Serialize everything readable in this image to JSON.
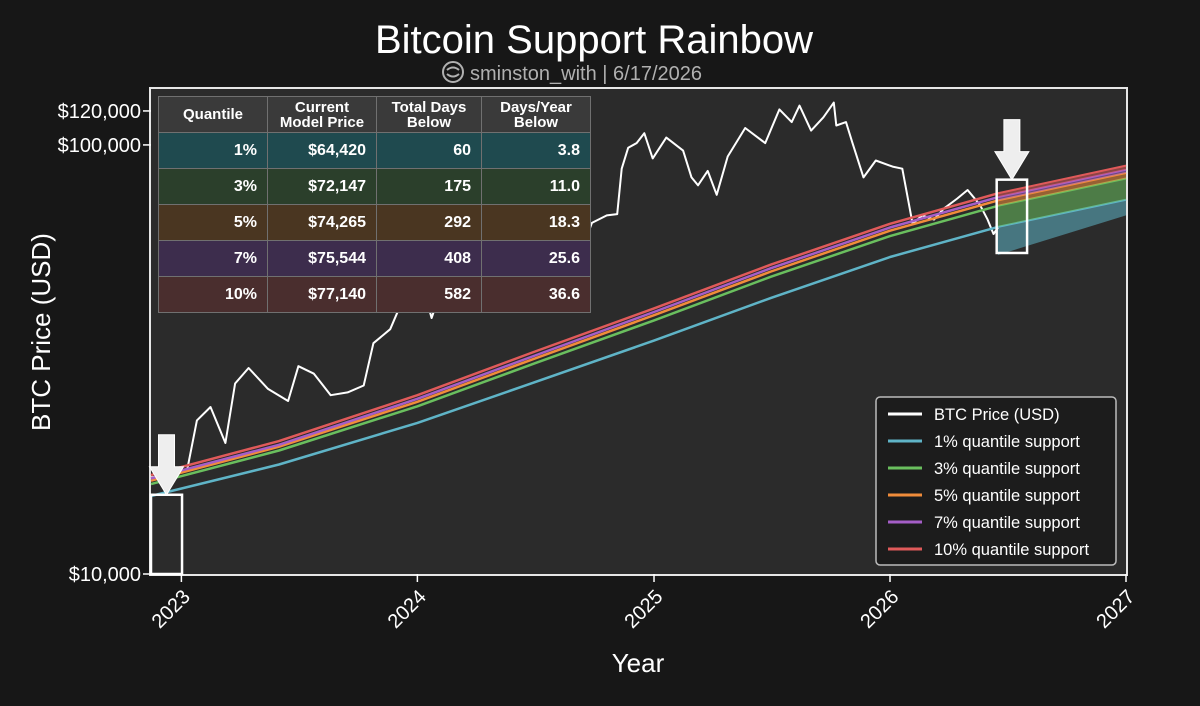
{
  "header": {
    "title": "Bitcoin Support Rainbow",
    "subtitle": "sminston_with | 6/17/2026",
    "subtitle_icon": "social-handle-icon"
  },
  "table": {
    "headers": [
      "Quantile",
      "Current\nModel Price",
      "Total Days\nBelow",
      "Days/Year\nBelow"
    ],
    "rows": [
      {
        "quantile": "1%",
        "price": "$64,420",
        "days": "60",
        "per_year": "3.8",
        "color": "#1f4a4f"
      },
      {
        "quantile": "3%",
        "price": "$72,147",
        "days": "175",
        "per_year": "11.0",
        "color": "#2b3f2b"
      },
      {
        "quantile": "5%",
        "price": "$74,265",
        "days": "292",
        "per_year": "18.3",
        "color": "#4a3621"
      },
      {
        "quantile": "7%",
        "price": "$75,544",
        "days": "408",
        "per_year": "25.6",
        "color": "#3d2d4d"
      },
      {
        "quantile": "10%",
        "price": "$77,140",
        "days": "582",
        "per_year": "36.6",
        "color": "#4a2e2e"
      }
    ]
  },
  "chart_data": {
    "type": "line",
    "title": "Bitcoin Support Rainbow",
    "xlabel": "Year",
    "ylabel": "BTC Price (USD)",
    "y_scale": "log",
    "x_ticks": [
      "2023",
      "2024",
      "2025",
      "2026",
      "2027"
    ],
    "y_ticks": [
      {
        "value": 10000,
        "label": "$10,000"
      },
      {
        "value": 100000,
        "label": "$100,000"
      },
      {
        "value": 120000,
        "label": "$120,000"
      }
    ],
    "xlim": [
      "2022-11-15",
      "2027-01-01"
    ],
    "ylim": [
      10000,
      135000
    ],
    "grid": false,
    "legend_position": "lower-right",
    "series": [
      {
        "name": "BTC Price (USD)",
        "color": "#ffffff",
        "points": [
          [
            "2022-11-15",
            16800
          ],
          [
            "2022-12-15",
            16900
          ],
          [
            "2023-01-10",
            17500
          ],
          [
            "2023-01-25",
            22800
          ],
          [
            "2023-02-15",
            24500
          ],
          [
            "2023-03-10",
            20200
          ],
          [
            "2023-03-25",
            27800
          ],
          [
            "2023-04-15",
            30200
          ],
          [
            "2023-05-15",
            27000
          ],
          [
            "2023-06-15",
            25300
          ],
          [
            "2023-07-01",
            30500
          ],
          [
            "2023-07-25",
            29300
          ],
          [
            "2023-08-20",
            26100
          ],
          [
            "2023-09-15",
            26500
          ],
          [
            "2023-10-10",
            27500
          ],
          [
            "2023-10-25",
            34500
          ],
          [
            "2023-11-20",
            37200
          ],
          [
            "2023-12-10",
            43800
          ],
          [
            "2024-01-10",
            46500
          ],
          [
            "2024-01-23",
            39500
          ],
          [
            "2024-02-10",
            47500
          ],
          [
            "2024-02-28",
            61500
          ],
          [
            "2024-03-14",
            72000
          ],
          [
            "2024-04-01",
            69500
          ],
          [
            "2024-04-20",
            64500
          ],
          [
            "2024-05-01",
            58000
          ],
          [
            "2024-05-20",
            70500
          ],
          [
            "2024-06-07",
            71000
          ],
          [
            "2024-07-05",
            55000
          ],
          [
            "2024-07-28",
            68500
          ],
          [
            "2024-08-05",
            53500
          ],
          [
            "2024-08-25",
            64000
          ],
          [
            "2024-09-06",
            54000
          ],
          [
            "2024-09-27",
            65800
          ],
          [
            "2024-10-20",
            68500
          ],
          [
            "2024-11-05",
            69000
          ],
          [
            "2024-11-12",
            88000
          ],
          [
            "2024-11-22",
            98500
          ],
          [
            "2024-12-05",
            101000
          ],
          [
            "2024-12-17",
            106500
          ],
          [
            "2024-12-30",
            93000
          ],
          [
            "2025-01-20",
            104000
          ],
          [
            "2025-02-15",
            97000
          ],
          [
            "2025-02-28",
            84000
          ],
          [
            "2025-03-10",
            80500
          ],
          [
            "2025-03-25",
            87000
          ],
          [
            "2025-04-08",
            76500
          ],
          [
            "2025-04-25",
            94000
          ],
          [
            "2025-05-22",
            109500
          ],
          [
            "2025-06-22",
            101000
          ],
          [
            "2025-07-14",
            121000
          ],
          [
            "2025-08-02",
            113000
          ],
          [
            "2025-08-14",
            123500
          ],
          [
            "2025-09-01",
            108000
          ],
          [
            "2025-09-20",
            116000
          ],
          [
            "2025-10-06",
            125500
          ],
          [
            "2025-10-10",
            111000
          ],
          [
            "2025-10-25",
            113000
          ],
          [
            "2025-11-04",
            101000
          ],
          [
            "2025-11-21",
            84000
          ],
          [
            "2025-12-10",
            92000
          ],
          [
            "2026-01-05",
            89000
          ],
          [
            "2026-01-20",
            88000
          ],
          [
            "2026-02-05",
            65500
          ],
          [
            "2026-02-20",
            68500
          ],
          [
            "2026-03-10",
            67000
          ],
          [
            "2026-03-25",
            71000
          ],
          [
            "2026-04-15",
            75000
          ],
          [
            "2026-05-01",
            78500
          ],
          [
            "2026-05-20",
            72500
          ],
          [
            "2026-06-01",
            67000
          ],
          [
            "2026-06-10",
            62000
          ],
          [
            "2026-06-17",
            64200
          ]
        ]
      },
      {
        "name": "1% quantile support",
        "color": "#5fb4c7",
        "points": [
          [
            "2022-11-15",
            15200
          ],
          [
            "2023-06-01",
            18000
          ],
          [
            "2024-01-01",
            22500
          ],
          [
            "2024-07-01",
            28000
          ],
          [
            "2025-01-01",
            35000
          ],
          [
            "2025-07-01",
            44000
          ],
          [
            "2026-01-01",
            54800
          ],
          [
            "2026-06-17",
            64420
          ]
        ]
      },
      {
        "name": "3% quantile support",
        "color": "#6abf5e",
        "points": [
          [
            "2022-11-15",
            16200
          ],
          [
            "2023-06-01",
            19400
          ],
          [
            "2024-01-01",
            24600
          ],
          [
            "2024-07-01",
            31000
          ],
          [
            "2025-01-01",
            39000
          ],
          [
            "2025-07-01",
            49300
          ],
          [
            "2026-01-01",
            61300
          ],
          [
            "2026-06-17",
            72147
          ]
        ]
      },
      {
        "name": "5% quantile support",
        "color": "#f08c3a",
        "points": [
          [
            "2022-11-15",
            16500
          ],
          [
            "2023-06-01",
            19800
          ],
          [
            "2024-01-01",
            25200
          ],
          [
            "2024-07-01",
            31800
          ],
          [
            "2025-01-01",
            40100
          ],
          [
            "2025-07-01",
            50700
          ],
          [
            "2026-01-01",
            63100
          ],
          [
            "2026-06-17",
            74265
          ]
        ]
      },
      {
        "name": "7% quantile support",
        "color": "#a55ec7",
        "points": [
          [
            "2022-11-15",
            16700
          ],
          [
            "2023-06-01",
            20000
          ],
          [
            "2024-01-01",
            25600
          ],
          [
            "2024-07-01",
            32300
          ],
          [
            "2025-01-01",
            40800
          ],
          [
            "2025-07-01",
            51600
          ],
          [
            "2026-01-01",
            64200
          ],
          [
            "2026-06-17",
            75544
          ]
        ]
      },
      {
        "name": "10% quantile support",
        "color": "#e05a5a",
        "points": [
          [
            "2022-11-15",
            17000
          ],
          [
            "2023-06-01",
            20400
          ],
          [
            "2024-01-01",
            26100
          ],
          [
            "2024-07-01",
            33000
          ],
          [
            "2025-01-01",
            41600
          ],
          [
            "2025-07-01",
            52600
          ],
          [
            "2026-01-01",
            65500
          ],
          [
            "2026-06-17",
            77140
          ]
        ]
      }
    ],
    "projection": {
      "start": "2026-06-17",
      "end": "2027-01-01",
      "end_values": {
        "1%": 74500,
        "3%": 83500,
        "5%": 86000,
        "7%": 87500,
        "10%": 89500
      }
    },
    "highlight_boxes": [
      {
        "x_range": [
          "2022-11-15",
          "2023-01-02"
        ],
        "y_range": [
          10000,
          15300
        ],
        "arrow": "down"
      },
      {
        "x_range": [
          "2026-06-15",
          "2026-08-01"
        ],
        "y_range": [
          56000,
          83000
        ],
        "arrow": "down"
      }
    ]
  }
}
